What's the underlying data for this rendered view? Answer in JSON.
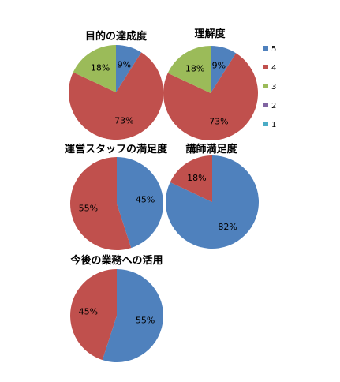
{
  "legend": {
    "entries": [
      {
        "label": "5",
        "color": "#4F81BD"
      },
      {
        "label": "4",
        "color": "#C0504D"
      },
      {
        "label": "3",
        "color": "#9BBB59"
      },
      {
        "label": "2",
        "color": "#8064A2"
      },
      {
        "label": "1",
        "color": "#4BACC6"
      }
    ]
  },
  "chart_data": [
    {
      "type": "pie",
      "title": "目的の達成度",
      "series": [
        {
          "categories": [
            "5",
            "4",
            "3"
          ],
          "values": [
            9,
            73,
            18
          ],
          "labels": [
            "9%",
            "73%",
            "18%"
          ]
        }
      ]
    },
    {
      "type": "pie",
      "title": "理解度",
      "series": [
        {
          "categories": [
            "5",
            "4",
            "3"
          ],
          "values": [
            9,
            73,
            18
          ],
          "labels": [
            "9%",
            "73%",
            "18%"
          ]
        }
      ]
    },
    {
      "type": "pie",
      "title": "運営スタッフの満足度",
      "series": [
        {
          "categories": [
            "5",
            "4"
          ],
          "values": [
            45,
            55
          ],
          "labels": [
            "45%",
            "55%"
          ]
        }
      ]
    },
    {
      "type": "pie",
      "title": "講師満足度",
      "series": [
        {
          "categories": [
            "5",
            "4"
          ],
          "values": [
            82,
            18
          ],
          "labels": [
            "82%",
            "18%"
          ]
        }
      ]
    },
    {
      "type": "pie",
      "title": "今後の業務への活用",
      "series": [
        {
          "categories": [
            "5",
            "4"
          ],
          "values": [
            55,
            45
          ],
          "labels": [
            "55%",
            "45%"
          ]
        }
      ]
    }
  ]
}
